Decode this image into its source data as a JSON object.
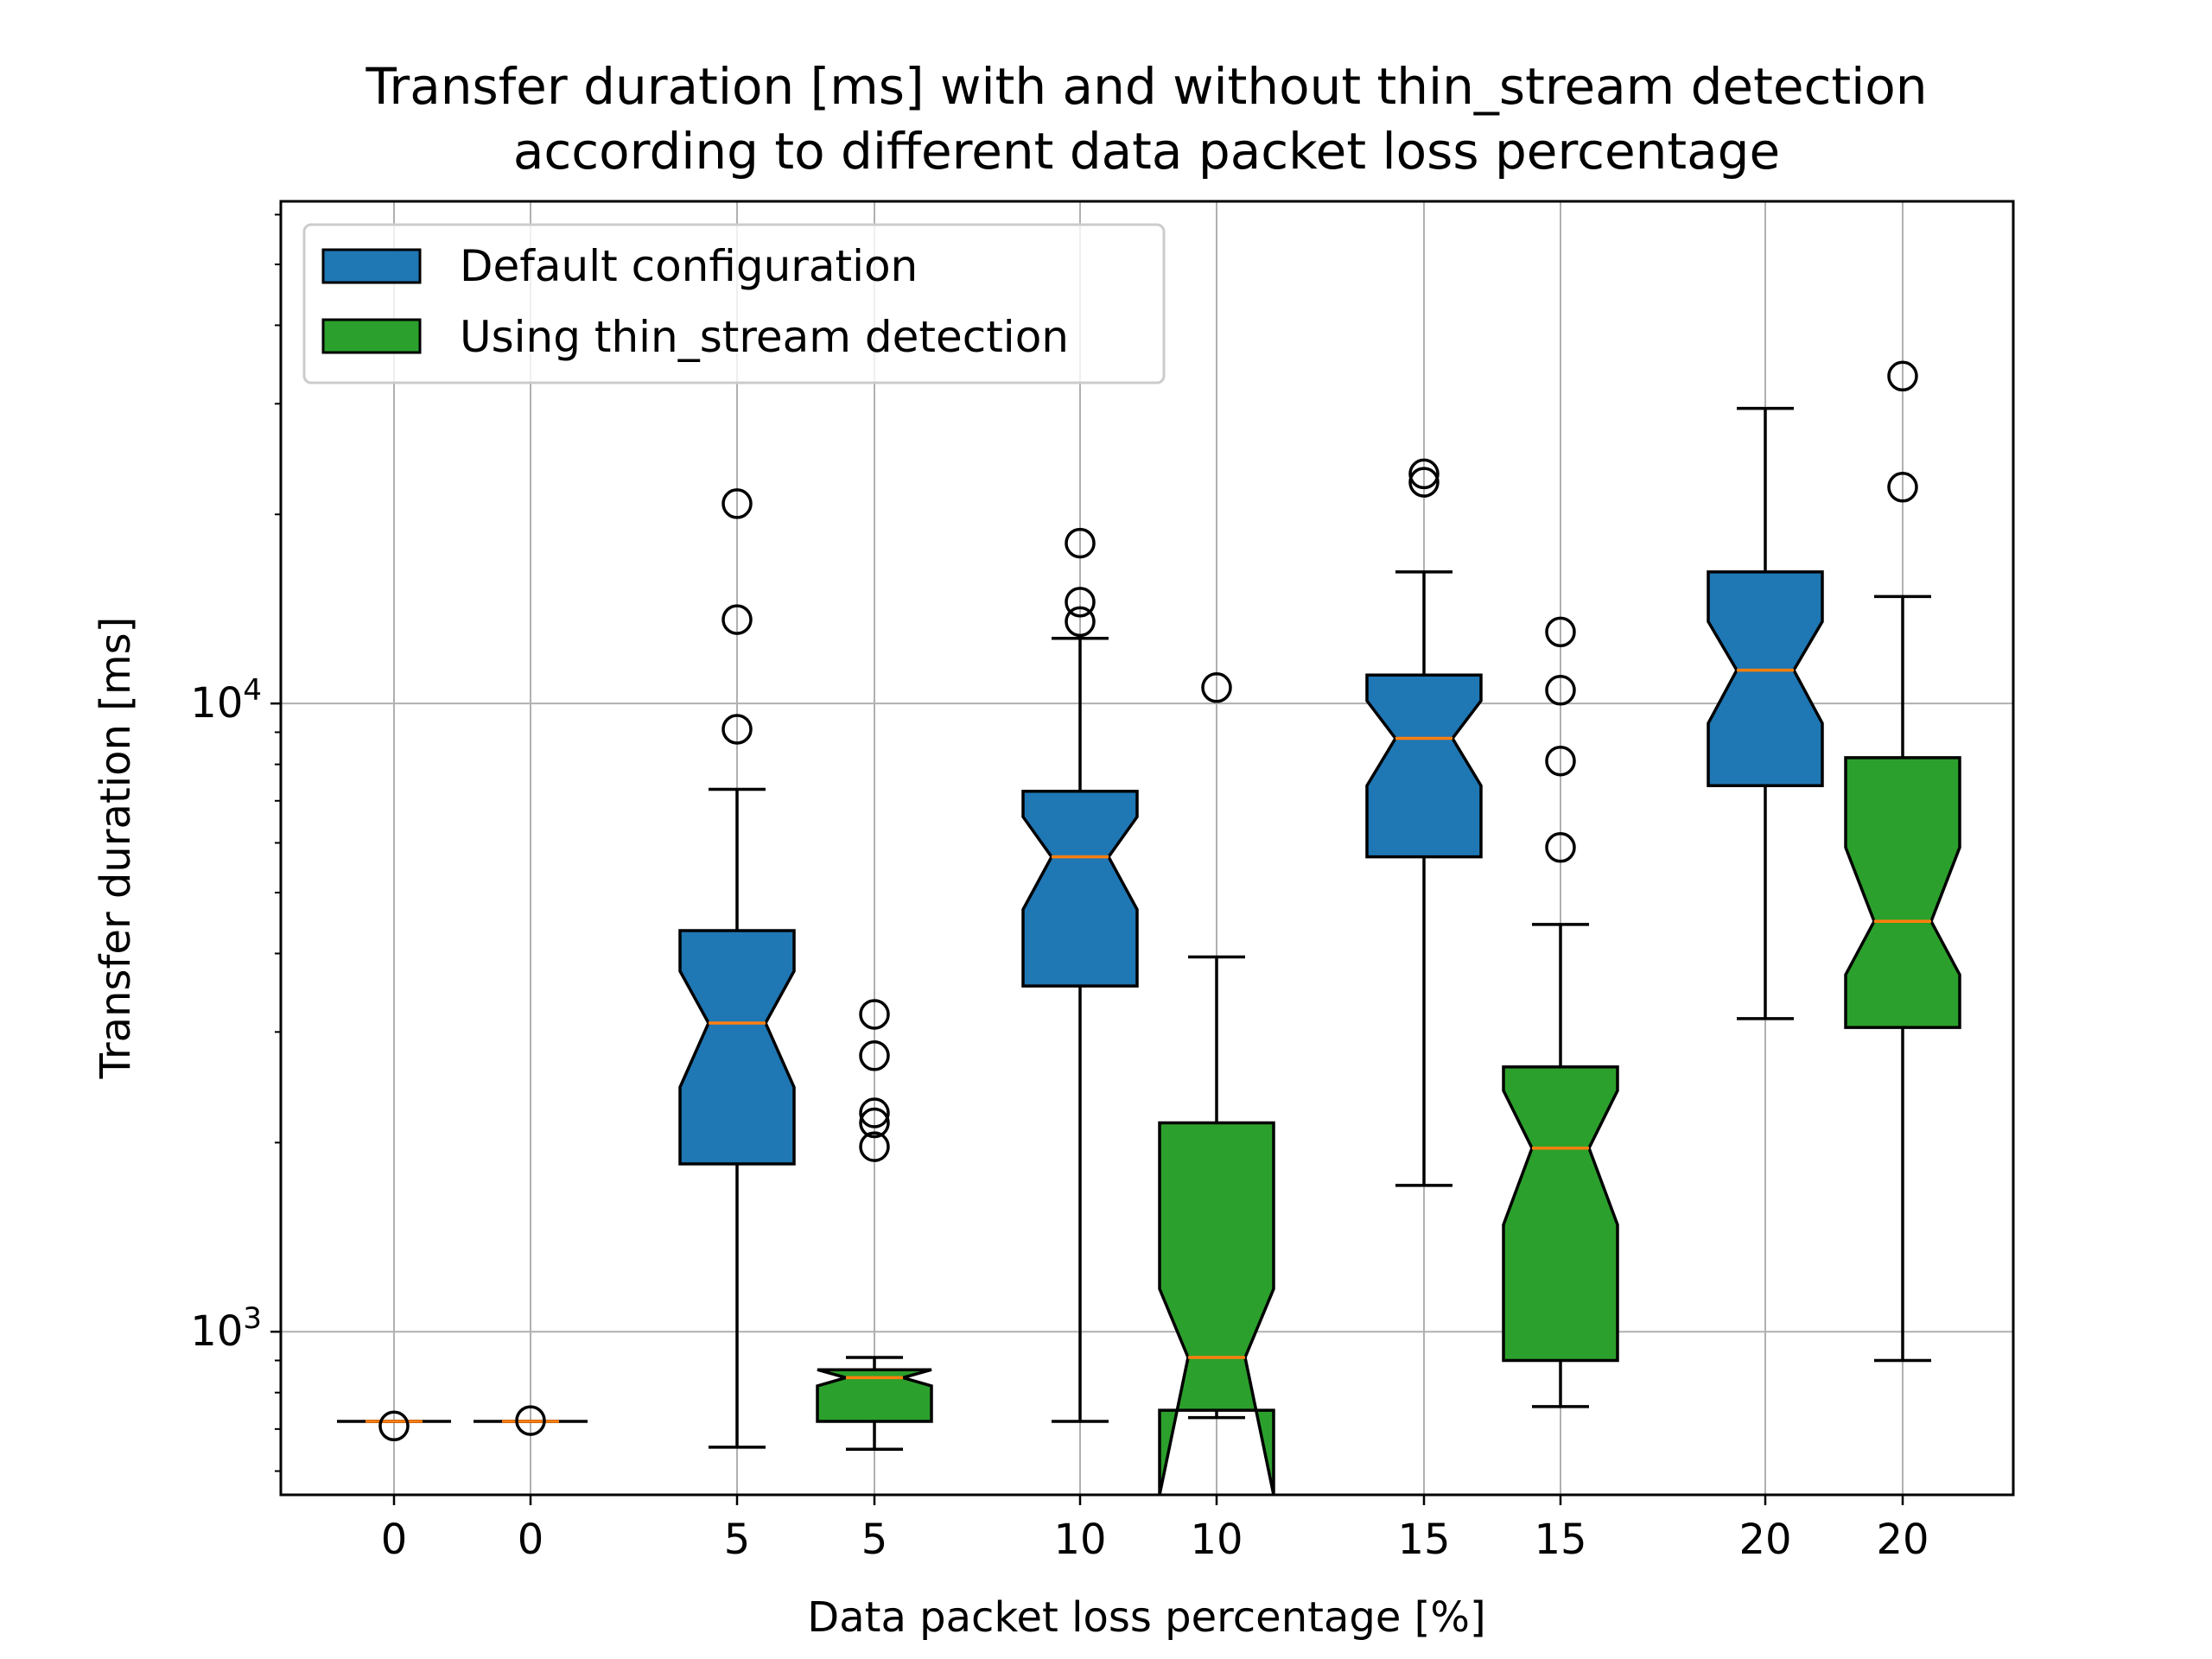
{
  "chart_data": {
    "type": "box",
    "title": [
      "Transfer duration [ms] with and without thin_stream detection",
      "according to different data packet loss percentage"
    ],
    "xlabel": "Data packet loss percentage [%]",
    "ylabel": "Transfer duration [ms]",
    "yscale": "log",
    "ylim": [
      550,
      63000
    ],
    "yticks": [
      {
        "value": 1000,
        "base": "10",
        "exp": "3"
      },
      {
        "value": 10000,
        "base": "10",
        "exp": "4"
      }
    ],
    "grid": true,
    "legend_position": "upper left",
    "categories": [
      "0",
      "0",
      "5",
      "5",
      "10",
      "10",
      "15",
      "15",
      "20",
      "20"
    ],
    "series": [
      {
        "name": "Default configuration",
        "color": "#1f77b4"
      },
      {
        "name": "Using thin_stream detection",
        "color": "#2ca02c"
      }
    ],
    "median_color": "#ff7f0e",
    "boxes": [
      {
        "category": "0",
        "series": 0,
        "whisker_low": 720,
        "q1": 720,
        "notch_low": 720,
        "median": 720,
        "notch_high": 720,
        "q3": 720,
        "whisker_high": 720,
        "outliers": [
          708
        ]
      },
      {
        "category": "0",
        "series": 1,
        "whisker_low": 720,
        "q1": 720,
        "notch_low": 720,
        "median": 720,
        "notch_high": 720,
        "q3": 720,
        "whisker_high": 720,
        "outliers": [
          722
        ]
      },
      {
        "category": "5",
        "series": 0,
        "whisker_low": 655,
        "q1": 1850,
        "notch_low": 2450,
        "median": 3100,
        "notch_high": 3750,
        "q3": 4350,
        "whisker_high": 7300,
        "outliers": [
          9100,
          13600,
          20800
        ]
      },
      {
        "category": "5",
        "series": 1,
        "whisker_low": 650,
        "q1": 720,
        "notch_low": 820,
        "median": 845,
        "notch_high": 870,
        "q3": 870,
        "whisker_high": 910,
        "outliers": [
          1970,
          2150,
          2230,
          2750,
          3200
        ]
      },
      {
        "category": "10",
        "series": 0,
        "whisker_low": 720,
        "q1": 3550,
        "notch_low": 4700,
        "median": 5700,
        "notch_high": 6600,
        "q3": 7250,
        "whisker_high": 12700,
        "outliers": [
          13500,
          14500,
          18000
        ]
      },
      {
        "category": "10",
        "series": 1,
        "whisker_low": 730,
        "q1": 750,
        "notch_low": 450,
        "median": 910,
        "notch_high": 1170,
        "q3": 2150,
        "whisker_high": 3950,
        "outliers": [
          10600
        ]
      },
      {
        "category": "15",
        "series": 0,
        "whisker_low": 1710,
        "q1": 5700,
        "notch_low": 7400,
        "median": 8800,
        "notch_high": 10100,
        "q3": 11100,
        "whisker_high": 16200,
        "outliers": [
          22500,
          23200
        ]
      },
      {
        "category": "15",
        "series": 1,
        "whisker_low": 760,
        "q1": 900,
        "notch_low": 1480,
        "median": 1960,
        "notch_high": 2420,
        "q3": 2640,
        "whisker_high": 4450,
        "outliers": [
          5900,
          8100,
          10500,
          13000
        ]
      },
      {
        "category": "20",
        "series": 0,
        "whisker_low": 3150,
        "q1": 7400,
        "notch_low": 9300,
        "median": 11300,
        "notch_high": 13500,
        "q3": 16200,
        "whisker_high": 29500,
        "outliers": []
      },
      {
        "category": "20",
        "series": 1,
        "whisker_low": 900,
        "q1": 3050,
        "notch_low": 3700,
        "median": 4500,
        "notch_high": 5900,
        "q3": 8200,
        "whisker_high": 14800,
        "outliers": [
          22100,
          33200
        ]
      }
    ]
  }
}
